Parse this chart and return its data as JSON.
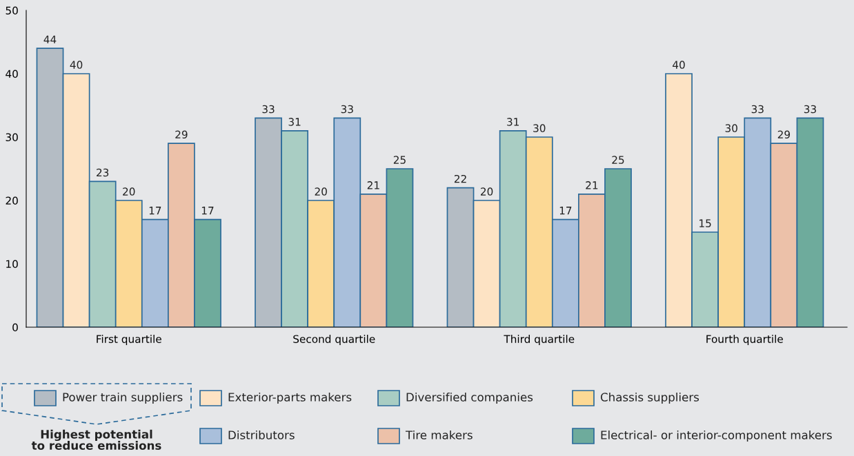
{
  "chart_data": {
    "type": "bar",
    "categories": [
      "First quartile",
      "Second quartile",
      "Third quartile",
      "Fourth quartile"
    ],
    "series": [
      {
        "name": "Power train suppliers",
        "color": "#b4bcc4",
        "values": [
          44,
          33,
          22,
          null
        ]
      },
      {
        "name": "Exterior-parts makers",
        "color": "#fde3c4",
        "values": [
          40,
          null,
          20,
          40
        ]
      },
      {
        "name": "Diversified companies",
        "color": "#a9cdc3",
        "values": [
          23,
          31,
          31,
          15
        ]
      },
      {
        "name": "Chassis suppliers",
        "color": "#fcd995",
        "values": [
          20,
          20,
          30,
          30
        ]
      },
      {
        "name": "Distributors",
        "color": "#a9bfdb",
        "values": [
          17,
          33,
          17,
          33
        ]
      },
      {
        "name": "Tire makers",
        "color": "#ecc1a9",
        "values": [
          29,
          21,
          21,
          29
        ]
      },
      {
        "name": "Electrical- or interior-component makers",
        "color": "#6eab9c",
        "values": [
          17,
          25,
          25,
          33
        ]
      }
    ],
    "ylim": [
      0,
      50
    ],
    "yticks": [
      0,
      10,
      20,
      30,
      40,
      50
    ],
    "data_labels": true,
    "grid": false,
    "legend": "bottom",
    "annotations": [
      "Highest potential\nto reduce emissions"
    ]
  }
}
